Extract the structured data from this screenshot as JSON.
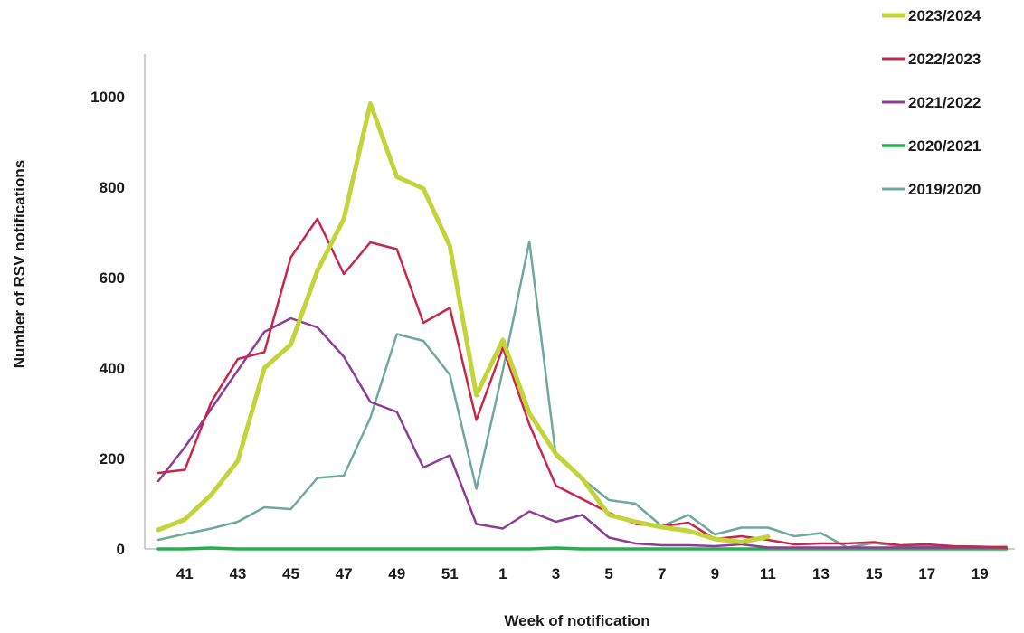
{
  "chart_data": {
    "type": "line",
    "title": "",
    "xlabel": "Week of notification",
    "ylabel": "Number of RSV notifications",
    "ylim": [
      0,
      1100
    ],
    "yticks": [
      0,
      200,
      400,
      600,
      800,
      1000
    ],
    "x": [
      40,
      41,
      42,
      43,
      44,
      45,
      46,
      47,
      48,
      49,
      50,
      51,
      52,
      1,
      2,
      3,
      4,
      5,
      6,
      7,
      8,
      9,
      10,
      11,
      12,
      13,
      14,
      15,
      16,
      17,
      18,
      19,
      20
    ],
    "xtick_labels": [
      "41",
      "43",
      "45",
      "47",
      "49",
      "51",
      "1",
      "3",
      "5",
      "7",
      "9",
      "11",
      "13",
      "15",
      "17",
      "19"
    ],
    "grid": false,
    "legend_position": "top-right",
    "series": [
      {
        "name": "2023/2024",
        "color": "#c3d33a",
        "line_width": 5,
        "values": [
          42,
          65,
          120,
          195,
          400,
          452,
          615,
          730,
          985,
          823,
          797,
          670,
          340,
          462,
          300,
          210,
          155,
          75,
          60,
          48,
          40,
          22,
          15,
          27,
          null,
          null,
          null,
          null,
          null,
          null,
          null,
          null,
          null
        ]
      },
      {
        "name": "2022/2023",
        "color": "#c8264a",
        "line_width": 2.5,
        "values": [
          168,
          175,
          325,
          420,
          435,
          645,
          730,
          608,
          678,
          663,
          500,
          533,
          285,
          445,
          275,
          140,
          110,
          80,
          55,
          50,
          58,
          22,
          28,
          20,
          10,
          12,
          12,
          15,
          8,
          10,
          6,
          5,
          3
        ]
      },
      {
        "name": "2021/2022",
        "color": "#8c3d96",
        "line_width": 2.5,
        "values": [
          150,
          225,
          310,
          395,
          480,
          510,
          490,
          425,
          325,
          303,
          180,
          207,
          55,
          45,
          83,
          60,
          75,
          25,
          12,
          8,
          8,
          6,
          10,
          3,
          3,
          3,
          3,
          3,
          3,
          3,
          3,
          3,
          3
        ]
      },
      {
        "name": "2020/2021",
        "color": "#22b24c",
        "line_width": 3.5,
        "values": [
          0,
          0,
          2,
          0,
          0,
          0,
          0,
          0,
          0,
          0,
          0,
          0,
          0,
          0,
          0,
          2,
          0,
          0,
          0,
          0,
          0,
          0,
          0,
          0,
          0,
          0,
          0,
          0,
          0,
          0,
          0,
          0,
          0
        ]
      },
      {
        "name": "2019/2020",
        "color": "#6fa89c",
        "line_width": 2.5,
        "values": [
          20,
          33,
          45,
          60,
          92,
          88,
          157,
          162,
          290,
          475,
          460,
          385,
          133,
          395,
          680,
          205,
          155,
          108,
          100,
          50,
          75,
          32,
          47,
          47,
          28,
          35,
          3,
          13,
          6,
          6,
          5,
          4,
          5
        ]
      }
    ]
  }
}
